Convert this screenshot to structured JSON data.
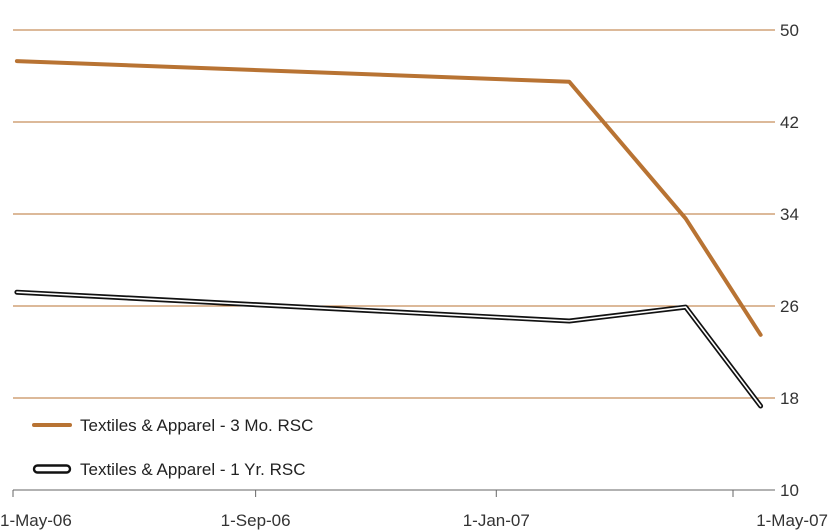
{
  "chart_data": {
    "type": "line",
    "title": "",
    "xlabel": "",
    "ylabel": "",
    "x_tick_labels": [
      "1-May-06",
      "1-Sep-06",
      "1-Jan-07",
      "1-May-07"
    ],
    "x_tick_dates": [
      "2006-05-01",
      "2006-09-01",
      "2007-01-01",
      "2007-05-01"
    ],
    "y_ticks": [
      10,
      18,
      26,
      34,
      42,
      50
    ],
    "ylim": [
      10,
      50
    ],
    "xlim": [
      "2006-05-01",
      "2007-05-01"
    ],
    "grid": true,
    "y_axis_side": "right",
    "legend_position": "bottom-left",
    "series": [
      {
        "name": "Textiles & Apparel - 3 Mo. RSC",
        "color": "#b87333",
        "style": "solid",
        "points": [
          {
            "x": "2006-05-03",
            "y": 47.3
          },
          {
            "x": "2007-02-07",
            "y": 45.5
          },
          {
            "x": "2007-04-07",
            "y": 33.6
          },
          {
            "x": "2007-05-15",
            "y": 23.5
          }
        ]
      },
      {
        "name": "Textiles & Apparel - 1 Yr. RSC",
        "color": "#111111",
        "style": "outlined",
        "points": [
          {
            "x": "2006-05-03",
            "y": 27.2
          },
          {
            "x": "2007-02-07",
            "y": 24.7
          },
          {
            "x": "2007-04-07",
            "y": 25.9
          },
          {
            "x": "2007-05-15",
            "y": 17.3
          }
        ]
      }
    ]
  }
}
